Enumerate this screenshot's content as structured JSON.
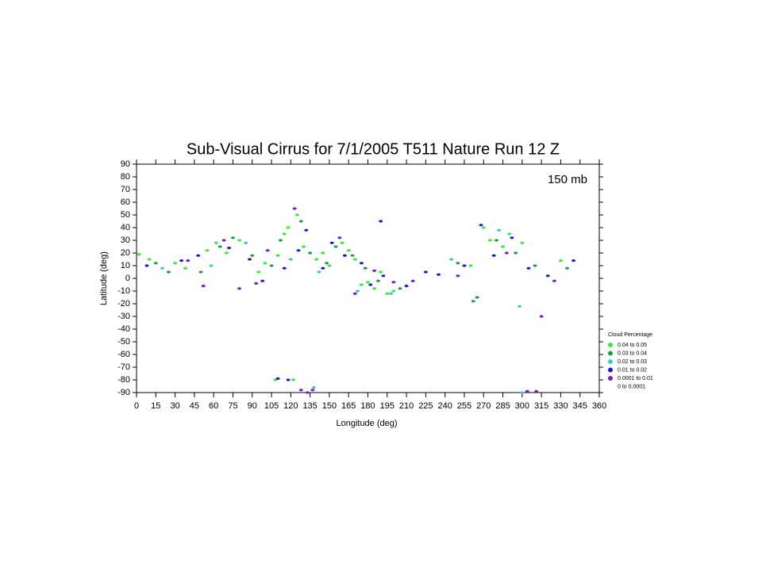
{
  "chart_data": {
    "type": "scatter",
    "title": "Sub-Visual Cirrus for 7/1/2005 T511 Nature Run 12 Z",
    "annotation": "150 mb",
    "x_label": "Longitude (deg)",
    "y_label": "Latitude (deg)",
    "xlim": [
      0,
      360
    ],
    "ylim": [
      -90,
      90
    ],
    "xticks": [
      0,
      15,
      30,
      45,
      60,
      75,
      90,
      105,
      120,
      135,
      150,
      165,
      180,
      195,
      210,
      225,
      240,
      255,
      270,
      285,
      300,
      315,
      330,
      345,
      360
    ],
    "yticks": [
      90,
      80,
      70,
      60,
      50,
      40,
      30,
      20,
      10,
      0,
      -10,
      -20,
      -30,
      -40,
      -50,
      -60,
      -70,
      -80,
      -90
    ],
    "legend_title": "Cloud Percentage",
    "legend_position": "right",
    "series": [
      {
        "name": "0.04 to 0.05",
        "color": "#33ee33",
        "x": [
          2,
          10,
          30,
          38,
          55,
          62,
          70,
          80,
          95,
          100,
          110,
          115,
          118,
          125,
          130,
          140,
          145,
          150,
          160,
          165,
          170,
          175,
          185,
          190,
          195,
          260,
          270,
          275,
          285,
          290,
          300,
          330,
          108,
          122,
          180,
          200
        ],
        "y": [
          19,
          15,
          12,
          8,
          22,
          28,
          20,
          30,
          5,
          12,
          18,
          35,
          40,
          50,
          25,
          15,
          20,
          10,
          28,
          22,
          15,
          -5,
          -8,
          5,
          -12,
          10,
          40,
          30,
          25,
          35,
          28,
          14,
          -80,
          -80,
          -3,
          -10
        ]
      },
      {
        "name": "0.03 to 0.04",
        "color": "#229944",
        "x": [
          15,
          25,
          50,
          65,
          75,
          90,
          105,
          112,
          128,
          135,
          148,
          155,
          168,
          178,
          188,
          205,
          250,
          265,
          280,
          295,
          310,
          262,
          335
        ],
        "y": [
          12,
          5,
          5,
          25,
          32,
          18,
          10,
          30,
          45,
          20,
          12,
          25,
          18,
          8,
          -2,
          -8,
          12,
          -15,
          30,
          20,
          10,
          -18,
          8
        ]
      },
      {
        "name": "0.02 to 0.03",
        "color": "#33cccc",
        "x": [
          20,
          58,
          85,
          120,
          142,
          172,
          198,
          245,
          282,
          298,
          138,
          300
        ],
        "y": [
          8,
          10,
          28,
          15,
          5,
          -10,
          -12,
          15,
          38,
          -22,
          -86,
          -90
        ]
      },
      {
        "name": "0.01 to 0.02",
        "color": "#1a1acc",
        "x": [
          8,
          35,
          48,
          72,
          88,
          98,
          115,
          126,
          132,
          145,
          152,
          162,
          175,
          182,
          192,
          210,
          225,
          235,
          255,
          268,
          278,
          292,
          305,
          320,
          340,
          190,
          118,
          110
        ],
        "y": [
          10,
          14,
          18,
          24,
          15,
          -2,
          8,
          22,
          38,
          8,
          28,
          18,
          12,
          -5,
          2,
          -6,
          5,
          3,
          10,
          42,
          18,
          32,
          8,
          2,
          14,
          45,
          -80,
          -79
        ]
      },
      {
        "name": "0.0001 to 0.01",
        "color": "#7a1acc",
        "x": [
          40,
          52,
          68,
          80,
          93,
          102,
          123,
          137,
          158,
          170,
          185,
          200,
          215,
          250,
          288,
          315,
          325,
          128,
          133,
          304,
          311
        ],
        "y": [
          14,
          -6,
          30,
          -8,
          -4,
          22,
          55,
          -88,
          32,
          -12,
          6,
          -3,
          -2,
          2,
          20,
          -30,
          -2,
          -88,
          -90,
          -89,
          -89
        ]
      },
      {
        "name": "0 to 0.0001",
        "color": "#ffffff",
        "x": [],
        "y": []
      }
    ]
  }
}
